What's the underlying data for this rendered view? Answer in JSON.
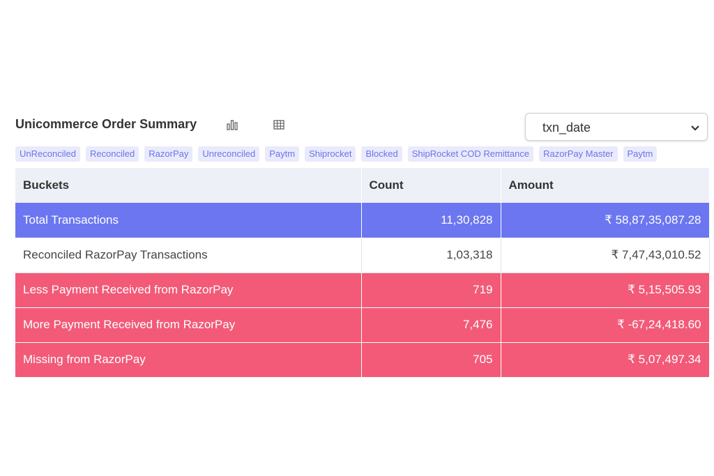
{
  "header": {
    "title": "Unicommerce Order Summary",
    "chart_icon": "bar-chart-icon",
    "table_icon": "table-grid-icon",
    "date_select": {
      "value": "txn_date",
      "icon": "chevron-down-icon"
    }
  },
  "chips": [
    "UnReconciled",
    "Reconciled",
    "RazorPay",
    "Unreconciled",
    "Paytm",
    "Shiprocket",
    "Blocked",
    "ShipRocket COD Remittance",
    "RazorPay Master",
    "Paytm"
  ],
  "table": {
    "headers": [
      "Buckets",
      "Count",
      "Amount"
    ],
    "rows": [
      {
        "bucket": "Total Transactions",
        "count": "11,30,828",
        "amount": "₹ 58,87,35,087.28"
      },
      {
        "bucket": "Reconciled RazorPay Transactions",
        "count": "1,03,318",
        "amount": "₹ 7,47,43,010.52"
      },
      {
        "bucket": "Less Payment Received from RazorPay",
        "count": "719",
        "amount": "₹ 5,15,505.93"
      },
      {
        "bucket": "More Payment Received from RazorPay",
        "count": "7,476",
        "amount": "₹ -67,24,418.60"
      },
      {
        "bucket": "Missing from RazorPay",
        "count": "705",
        "amount": "₹ 5,07,497.34"
      }
    ]
  },
  "colors": {
    "total_row": "#6b76f0",
    "alert_row": "#f25a78",
    "chip_bg": "#e9ebfc",
    "chip_text": "#6b73e8"
  }
}
